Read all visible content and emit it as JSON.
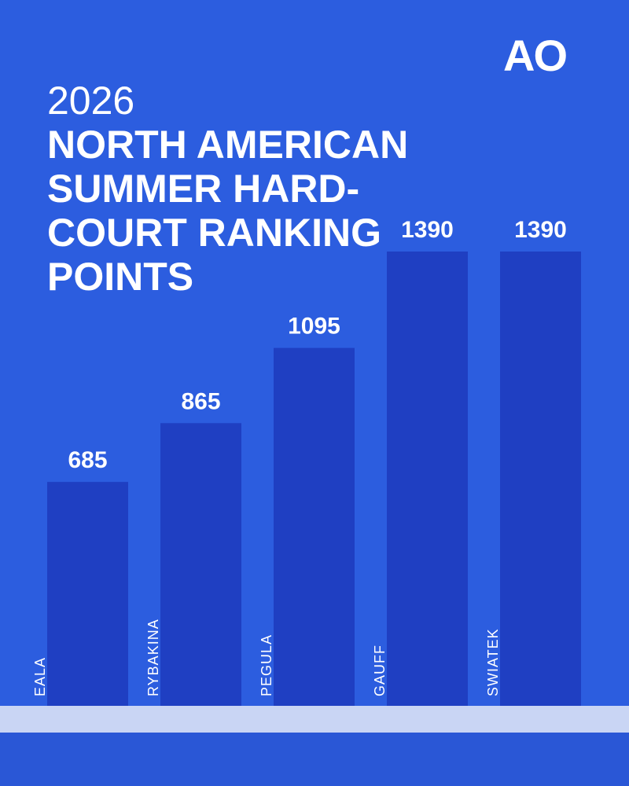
{
  "logo": "AO",
  "chart_data": {
    "type": "bar",
    "title": "2026",
    "subtitle": "NORTH AMERICAN SUMMER HARD-COURT RANKING POINTS",
    "categories": [
      "EALA",
      "RYBAKINA",
      "PEGULA",
      "GAUFF",
      "SWIATEK"
    ],
    "values": [
      685,
      865,
      1095,
      1390,
      1390
    ],
    "color": "#1f3fc2"
  }
}
